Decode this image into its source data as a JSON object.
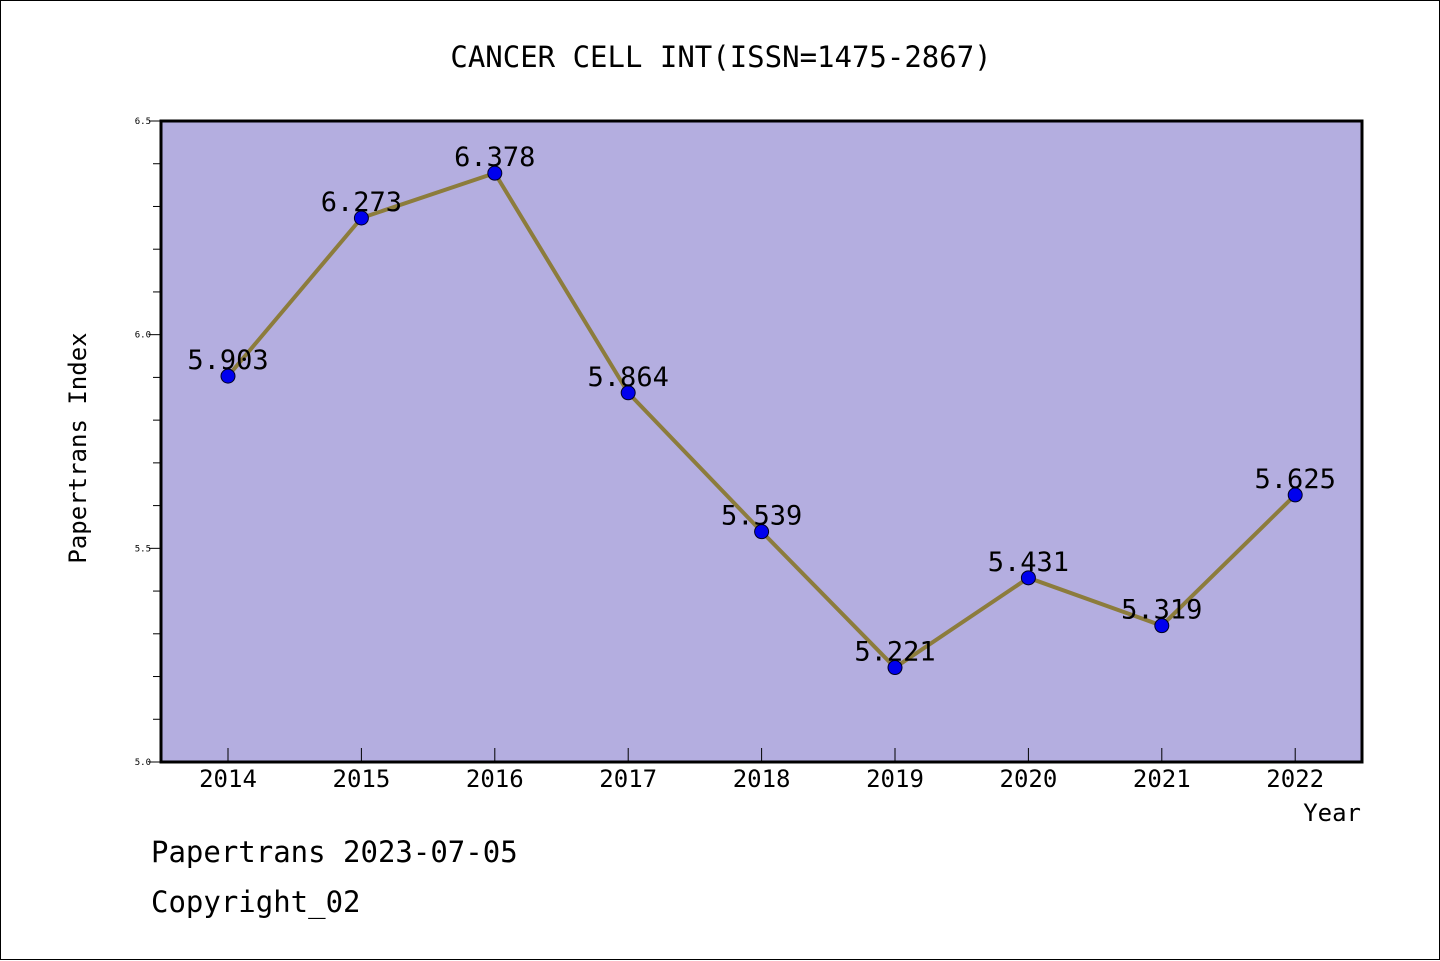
{
  "chart_data": {
    "type": "line",
    "title": "CANCER CELL INT(ISSN=1475-2867)",
    "xlabel": "Year",
    "ylabel": "Papertrans Index",
    "categories": [
      "2014",
      "2015",
      "2016",
      "2017",
      "2018",
      "2019",
      "2020",
      "2021",
      "2022"
    ],
    "series": [
      {
        "values": [
          5.903,
          6.273,
          6.378,
          5.864,
          5.539,
          5.221,
          5.431,
          5.319,
          5.625
        ],
        "labels": [
          "5.903",
          "6.273",
          "6.378",
          "5.864",
          "5.539",
          "5.221",
          "5.431",
          "5.319",
          "5.625"
        ]
      }
    ],
    "ylim": [
      5.0,
      6.5
    ],
    "yticks": [
      "5.0",
      "5.5",
      "6.0",
      "6.5"
    ],
    "grid": false,
    "colors": {
      "plot_background": "#b4aee0",
      "line": "#8c7c3c",
      "marker": "#0000ee"
    }
  },
  "footer": {
    "line1": "Papertrans 2023-07-05",
    "line2": "Copyright_02"
  }
}
